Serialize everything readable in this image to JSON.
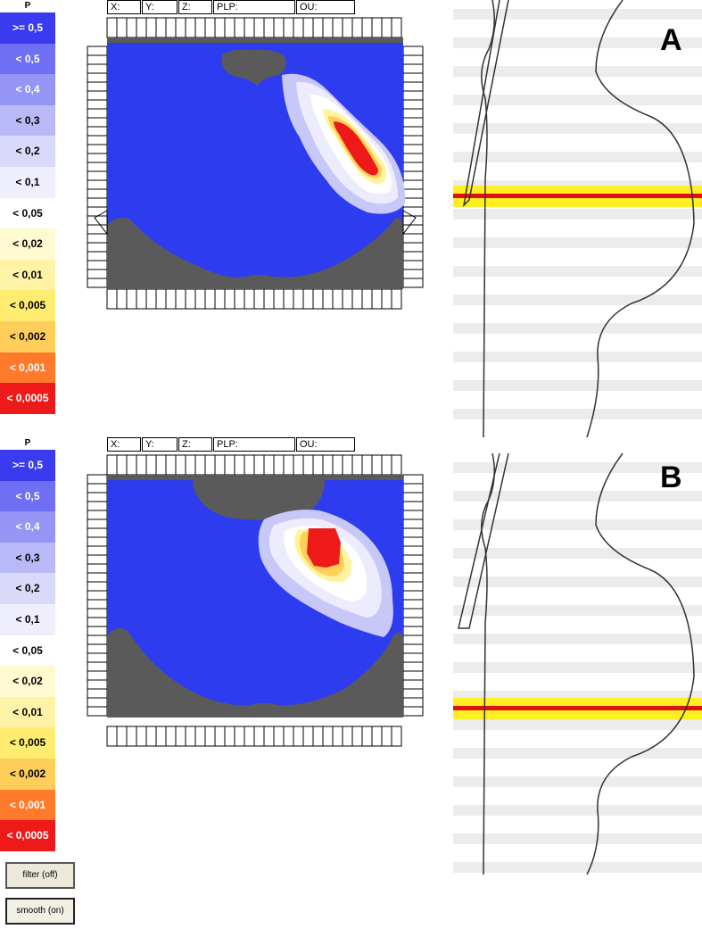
{
  "header_fields": [
    "X:",
    "Y:",
    "Z:",
    "PLP:",
    "OU:"
  ],
  "legend": {
    "title": "P",
    "items": [
      ">= 0,5",
      "< 0,5",
      "< 0,4",
      "< 0,3",
      "< 0,2",
      "< 0,1",
      "< 0,05",
      "< 0,02",
      "< 0,01",
      "< 0,005",
      "< 0,002",
      "< 0,001",
      "< 0,0005"
    ],
    "colors": [
      "#3a3aee",
      "#6f6ff4",
      "#9595f6",
      "#b9b9f8",
      "#d9d9fa",
      "#eeeefc",
      "#ffffff",
      "#fffad0",
      "#fff3a8",
      "#ffec70",
      "#ffce5a",
      "#ff7a2a",
      "#ee1a1a"
    ]
  },
  "panels": [
    {
      "label": "A"
    },
    {
      "label": "B"
    }
  ],
  "buttons": {
    "filter_label": "filter (off)",
    "smooth_label": "smooth (on)"
  },
  "colors": {
    "map_background": "#2e3cf0",
    "masked_region": "#5a5a5a",
    "highlight_band": "#ffee22",
    "highlight_line": "#dd1111",
    "stripe": "#ececec"
  }
}
